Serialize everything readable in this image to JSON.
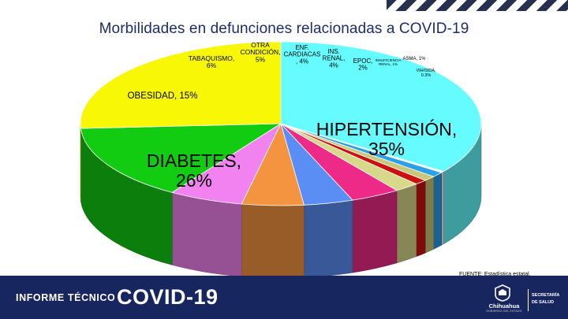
{
  "chart_data": {
    "type": "pie",
    "title": "Morbilidades en defunciones relacionadas a COVID-19",
    "slices": [
      {
        "label": "HIPERTENSIÓN, 35%",
        "value": 35,
        "color": "#66fcff"
      },
      {
        "label": "VIH/SIDA, 0.3%",
        "value": 0.3,
        "color": "#f4f4f4"
      },
      {
        "label": "ASMA, 1%",
        "value": 1,
        "color": "#2aa0e8"
      },
      {
        "label": "INSUFICIENCIA RENAL, 1%",
        "value": 1,
        "color": "#c8c878"
      },
      {
        "label": "",
        "value": 1,
        "color": "#cc1010"
      },
      {
        "label": "EPOC, 2%",
        "value": 2,
        "color": "#d8d88a"
      },
      {
        "label": "INS. RENAL, 4%",
        "value": 4,
        "color": "#ee2a88"
      },
      {
        "label": "ENF. CARDIACAS, 4%",
        "value": 4,
        "color": "#5b8ef4"
      },
      {
        "label": "OTRA CONDICIÓN, 5%",
        "value": 5,
        "color": "#f49440"
      },
      {
        "label": "TABAQUISMO, 6%",
        "value": 6,
        "color": "#f282f0"
      },
      {
        "label": "OBESIDAD, 15%",
        "value": 15,
        "color": "#12cc12"
      },
      {
        "label": "DIABETES, 26%",
        "value": 26,
        "color": "#f7f706"
      }
    ]
  },
  "footer": {
    "label": "INFORME TÉCNICO",
    "title": "COVID-19",
    "state_logo": "Chihuahua",
    "state_logo_sub": "GOBIERNO DEL ESTADO",
    "department_line1": "SECRETARÍA",
    "department_line2": "DE SALUD"
  },
  "source_note": "FUENTE: Estadística estatal."
}
